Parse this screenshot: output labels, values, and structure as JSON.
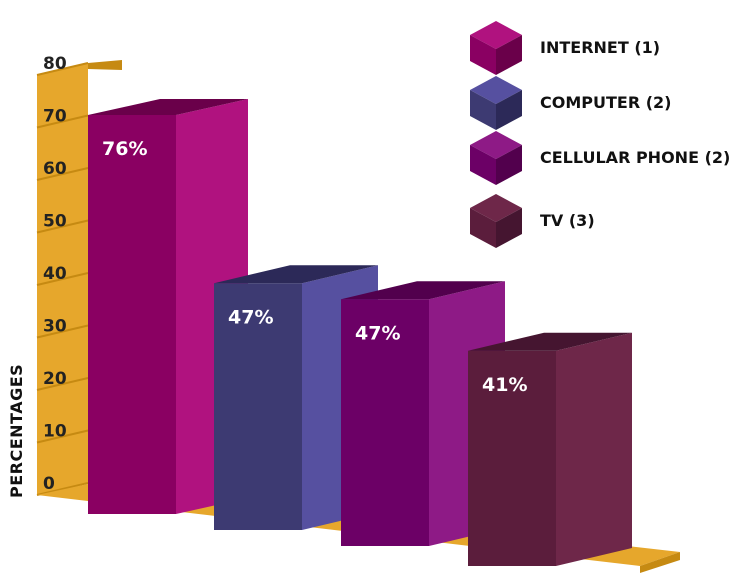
{
  "chart_data": {
    "type": "bar",
    "categories": [
      "INTERNET (1)",
      "COMPUTER (2)",
      "CELLULAR PHONE (2)",
      "TV (3)"
    ],
    "values": [
      76,
      47,
      47,
      41
    ],
    "data_labels": [
      "76%",
      "47%",
      "47%",
      "41%"
    ],
    "ylabel": "PERCENTAGES",
    "ylim": [
      0,
      80
    ],
    "yticks": [
      "0",
      "10",
      "20",
      "30",
      "40",
      "50",
      "60",
      "70",
      "80"
    ],
    "legend": {
      "position": "top-right",
      "entries": [
        "INTERNET (1)",
        "COMPUTER (2)",
        "CELLULAR PHONE (2)",
        "TV (3)"
      ]
    },
    "grid": false,
    "style": "3d",
    "colors": {
      "series": [
        {
          "front": "#8a0062",
          "side": "#b0127f",
          "top": "#6a004a"
        },
        {
          "front": "#3d3a72",
          "side": "#5650a0",
          "top": "#2c2958"
        },
        {
          "front": "#6c0066",
          "side": "#8e1a86",
          "top": "#52004d"
        },
        {
          "front": "#5b1d3c",
          "side": "#6e2749",
          "top": "#451530"
        }
      ],
      "axis": "#e6a72c",
      "axis_dark": "#c68a12"
    }
  }
}
